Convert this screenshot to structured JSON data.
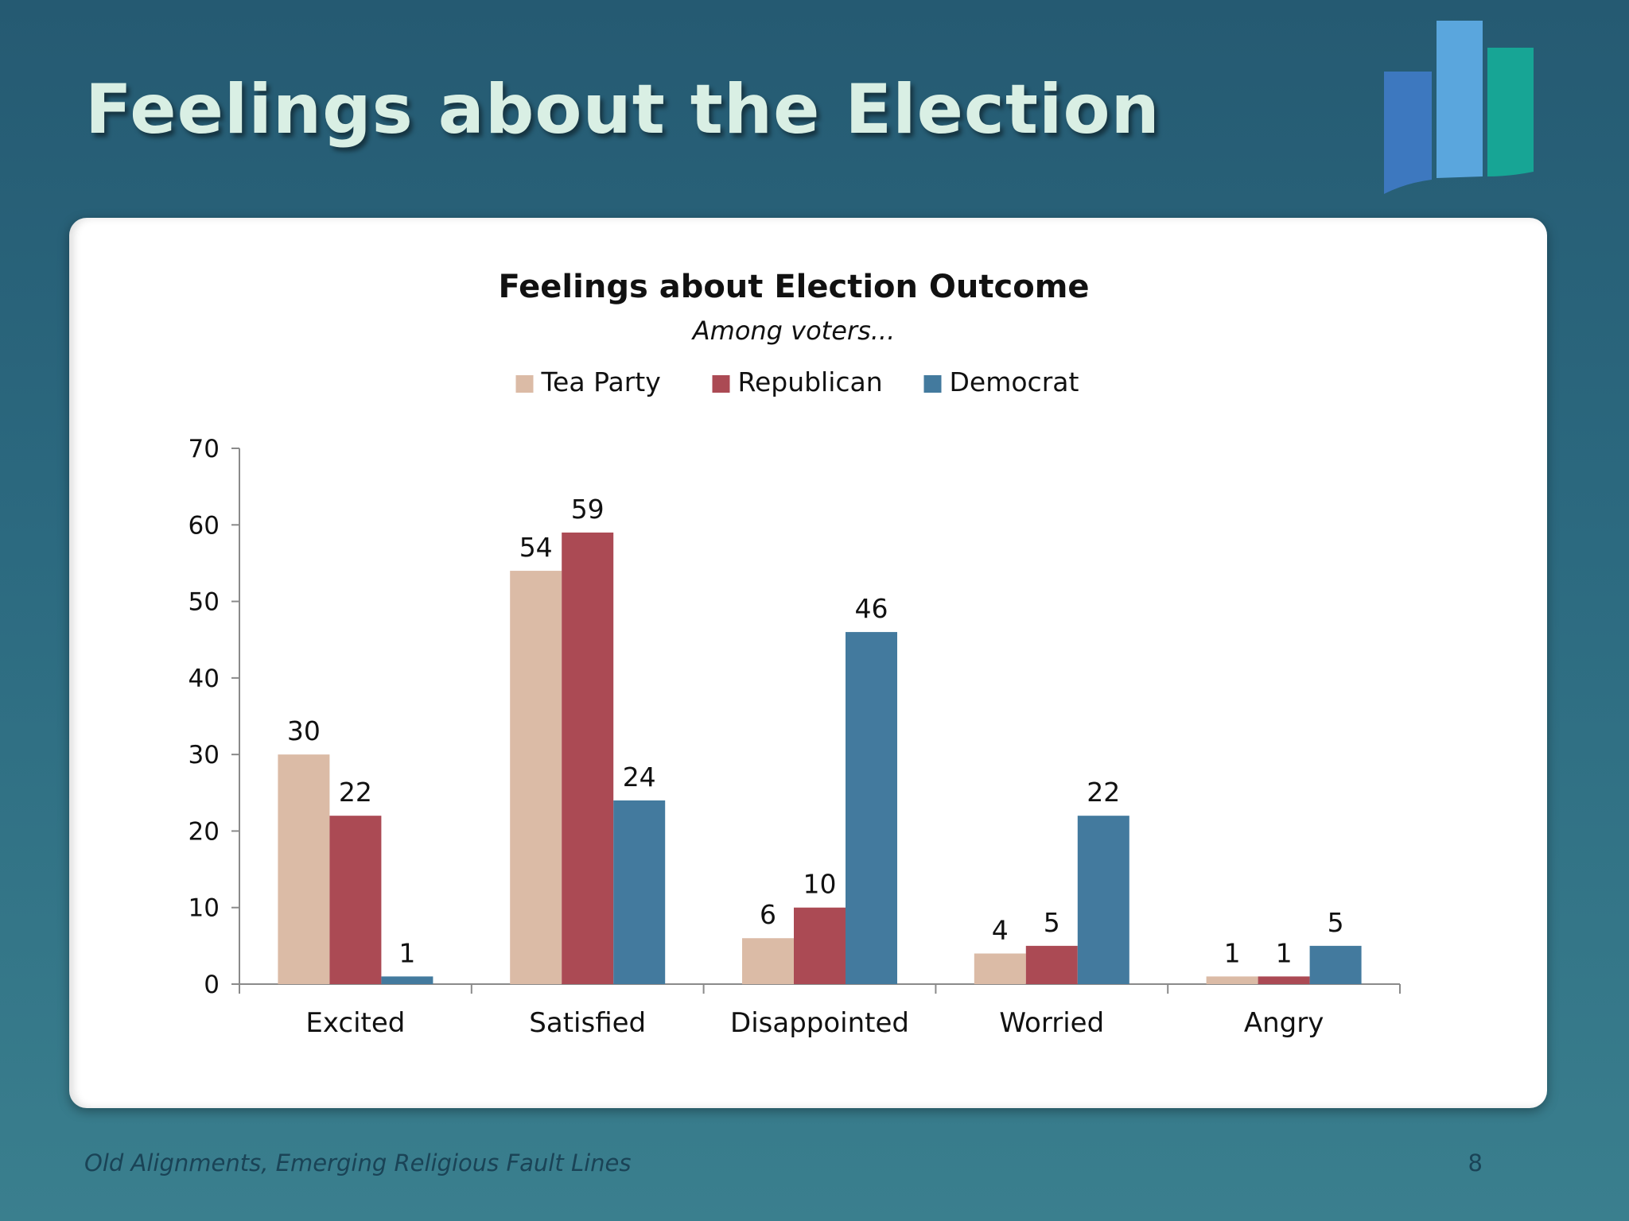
{
  "slide": {
    "title": "Feelings about the Election",
    "footer": "Old Alignments, Emerging Religious Fault Lines",
    "page_number": "8"
  },
  "logo": {
    "icon": "bar-chart-logo-icon",
    "colors": [
      "#3d78bf",
      "#5aa6dd",
      "#17a595"
    ]
  },
  "chart_data": {
    "type": "bar",
    "title": "Feelings about Election Outcome",
    "subtitle": "Among voters...",
    "categories": [
      "Excited",
      "Satisfied",
      "Disappointed",
      "Worried",
      "Angry"
    ],
    "series": [
      {
        "name": "Tea Party",
        "color": "#dbbba6",
        "values": [
          30,
          54,
          6,
          4,
          1
        ]
      },
      {
        "name": "Republican",
        "color": "#ab4a54",
        "values": [
          22,
          59,
          10,
          5,
          1
        ]
      },
      {
        "name": "Democrat",
        "color": "#437a9e",
        "values": [
          1,
          24,
          46,
          22,
          5
        ]
      }
    ],
    "ylim": [
      0,
      70
    ],
    "yticks": [
      0,
      10,
      20,
      30,
      40,
      50,
      60,
      70
    ],
    "xlabel": "",
    "ylabel": "",
    "grid": false,
    "legend": "top-center",
    "data_labels": true
  }
}
